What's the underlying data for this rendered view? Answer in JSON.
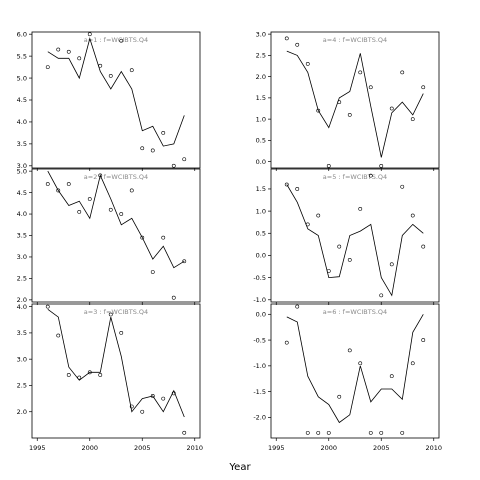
{
  "figure": {
    "xlabel": "Year"
  },
  "chart_data": [
    {
      "type": "line",
      "title": "a=1 : f=WCIBTS.Q4",
      "xlim": [
        1994.5,
        2010.5
      ],
      "ylim": [
        2.95,
        6.05
      ],
      "x_ticks": [
        1995,
        2000,
        2005,
        2010
      ],
      "y_ticks": [
        3.0,
        3.5,
        4.0,
        4.5,
        5.0,
        5.5,
        6.0
      ],
      "x_tick_labels": [],
      "y_tick_labels": [
        "3.0",
        "3.5",
        "4.0",
        "4.5",
        "5.0",
        "5.5",
        "6.0"
      ],
      "series": [
        {
          "style": "line",
          "x": [
            1996,
            1997,
            1998,
            1999,
            2000,
            2001,
            2002,
            2003,
            2004,
            2005,
            2006,
            2007,
            2008,
            2009
          ],
          "y": [
            5.6,
            5.45,
            5.45,
            5.0,
            5.9,
            5.15,
            4.75,
            5.15,
            4.75,
            3.8,
            3.9,
            3.45,
            3.5,
            4.15
          ]
        },
        {
          "style": "points",
          "x": [
            1996,
            1997,
            1998,
            1999,
            2000,
            2001,
            2002,
            2003,
            2004,
            2005,
            2006,
            2007,
            2008,
            2009
          ],
          "y": [
            5.25,
            5.65,
            5.6,
            5.45,
            6.0,
            5.28,
            5.05,
            5.85,
            5.18,
            3.4,
            3.35,
            3.75,
            3.0,
            3.15
          ]
        }
      ]
    },
    {
      "type": "line",
      "title": "a=4 : f=WCIBTS.Q4",
      "xlim": [
        1994.5,
        2010.5
      ],
      "ylim": [
        -0.15,
        3.05
      ],
      "x_ticks": [
        1995,
        2000,
        2005,
        2010
      ],
      "y_ticks": [
        0.0,
        0.5,
        1.0,
        1.5,
        2.0,
        2.5,
        3.0
      ],
      "x_tick_labels": [],
      "y_tick_labels": [
        "0.0",
        "0.5",
        "1.0",
        "1.5",
        "2.0",
        "2.5",
        "3.0"
      ],
      "series": [
        {
          "style": "line",
          "x": [
            1996,
            1997,
            1998,
            1999,
            2000,
            2001,
            2002,
            2003,
            2004,
            2005,
            2006,
            2007,
            2008,
            2009
          ],
          "y": [
            2.6,
            2.5,
            2.1,
            1.2,
            0.8,
            1.5,
            1.65,
            2.55,
            1.3,
            0.1,
            1.15,
            1.4,
            1.1,
            1.6
          ]
        },
        {
          "style": "points",
          "x": [
            1996,
            1997,
            1998,
            1999,
            2000,
            2001,
            2002,
            2003,
            2004,
            2005,
            2006,
            2007,
            2008,
            2009
          ],
          "y": [
            2.9,
            2.75,
            2.3,
            1.2,
            -0.1,
            1.4,
            1.1,
            2.1,
            1.75,
            -0.1,
            1.25,
            2.1,
            1.0,
            1.75
          ]
        }
      ]
    },
    {
      "type": "line",
      "title": "a=2 : f=WCIBTS.Q4",
      "xlim": [
        1994.5,
        2010.5
      ],
      "ylim": [
        1.95,
        5.05
      ],
      "x_ticks": [
        1995,
        2000,
        2005,
        2010
      ],
      "y_ticks": [
        2.0,
        2.5,
        3.0,
        3.5,
        4.0,
        4.5,
        5.0
      ],
      "x_tick_labels": [],
      "y_tick_labels": [
        "2.0",
        "2.5",
        "3.0",
        "3.5",
        "4.0",
        "4.5",
        "5.0"
      ],
      "series": [
        {
          "style": "line",
          "x": [
            1996,
            1997,
            1998,
            1999,
            2000,
            2001,
            2002,
            2003,
            2004,
            2005,
            2006,
            2007,
            2008,
            2009
          ],
          "y": [
            5.0,
            4.55,
            4.2,
            4.3,
            3.9,
            4.9,
            4.35,
            3.75,
            3.9,
            3.45,
            2.95,
            3.25,
            2.75,
            2.9
          ]
        },
        {
          "style": "points",
          "x": [
            1996,
            1997,
            1998,
            1999,
            2000,
            2001,
            2002,
            2003,
            2004,
            2005,
            2006,
            2007,
            2008,
            2009
          ],
          "y": [
            4.7,
            4.55,
            4.7,
            4.05,
            4.35,
            4.9,
            4.1,
            4.0,
            4.55,
            3.45,
            2.65,
            3.45,
            2.05,
            2.9
          ]
        }
      ]
    },
    {
      "type": "line",
      "title": "a=5 : f=WCIBTS.Q4",
      "xlim": [
        1994.5,
        2010.5
      ],
      "ylim": [
        -1.05,
        1.95
      ],
      "x_ticks": [
        1995,
        2000,
        2005,
        2010
      ],
      "y_ticks": [
        -1.0,
        -0.5,
        0.0,
        0.5,
        1.0,
        1.5
      ],
      "x_tick_labels": [],
      "y_tick_labels": [
        "-1.0",
        "-0.5",
        "0.0",
        "0.5",
        "1.0",
        "1.5"
      ],
      "series": [
        {
          "style": "line",
          "x": [
            1996,
            1997,
            1998,
            1999,
            2000,
            2001,
            2002,
            2003,
            2004,
            2005,
            2006,
            2007,
            2008,
            2009
          ],
          "y": [
            1.6,
            1.2,
            0.6,
            0.45,
            -0.5,
            -0.48,
            0.45,
            0.55,
            0.7,
            -0.5,
            -0.9,
            0.45,
            0.7,
            0.5
          ]
        },
        {
          "style": "points",
          "x": [
            1996,
            1997,
            1998,
            1999,
            2000,
            2001,
            2002,
            2003,
            2004,
            2005,
            2006,
            2007,
            2008,
            2009
          ],
          "y": [
            1.6,
            1.5,
            0.7,
            0.9,
            -0.35,
            0.2,
            -0.1,
            1.05,
            1.8,
            -0.9,
            -0.2,
            1.55,
            0.9,
            0.2
          ]
        }
      ]
    },
    {
      "type": "line",
      "title": "a=3 : f=WCIBTS.Q4",
      "xlim": [
        1994.5,
        2010.5
      ],
      "ylim": [
        1.5,
        4.05
      ],
      "x_ticks": [
        1995,
        2000,
        2005,
        2010
      ],
      "y_ticks": [
        2.0,
        2.5,
        3.0,
        3.5,
        4.0
      ],
      "x_tick_labels": [
        "1995",
        "2000",
        "2005",
        "2010"
      ],
      "y_tick_labels": [
        "2.0",
        "2.5",
        "3.0",
        "3.5",
        "4.0"
      ],
      "series": [
        {
          "style": "line",
          "x": [
            1996,
            1997,
            1998,
            1999,
            2000,
            2001,
            2002,
            2003,
            2004,
            2005,
            2006,
            2007,
            2008,
            2009
          ],
          "y": [
            3.95,
            3.8,
            2.85,
            2.6,
            2.75,
            2.75,
            3.8,
            3.05,
            2.0,
            2.25,
            2.3,
            2.0,
            2.4,
            1.9
          ]
        },
        {
          "style": "points",
          "x": [
            1996,
            1997,
            1998,
            1999,
            2000,
            2001,
            2002,
            2003,
            2004,
            2005,
            2006,
            2007,
            2008,
            2009
          ],
          "y": [
            4.0,
            3.45,
            2.7,
            2.65,
            2.75,
            2.7,
            3.85,
            3.5,
            2.1,
            2.0,
            2.3,
            2.25,
            2.35,
            1.6
          ]
        }
      ]
    },
    {
      "type": "line",
      "title": "a=6 : f=WCIBTS.Q4",
      "xlim": [
        1994.5,
        2010.5
      ],
      "ylim": [
        -2.4,
        0.2
      ],
      "x_ticks": [
        1995,
        2000,
        2005,
        2010
      ],
      "y_ticks": [
        -2.0,
        -1.5,
        -1.0,
        -0.5,
        0.0
      ],
      "x_tick_labels": [
        "1995",
        "2000",
        "2005",
        "2010"
      ],
      "y_tick_labels": [
        "-2.0",
        "-1.5",
        "-1.0",
        "-0.5",
        "0.0"
      ],
      "series": [
        {
          "style": "line",
          "x": [
            1996,
            1997,
            1998,
            1999,
            2000,
            2001,
            2002,
            2003,
            2004,
            2005,
            2006,
            2007,
            2008,
            2009
          ],
          "y": [
            -0.05,
            -0.15,
            -1.2,
            -1.6,
            -1.75,
            -2.1,
            -1.95,
            -1.0,
            -1.7,
            -1.45,
            -1.45,
            -1.65,
            -0.35,
            0.0
          ]
        },
        {
          "style": "points",
          "x": [
            1996,
            1997,
            1998,
            1999,
            2000,
            2001,
            2002,
            2003,
            2004,
            2005,
            2006,
            2007,
            2008,
            2009
          ],
          "y": [
            -0.55,
            0.15,
            -2.3,
            -2.3,
            -2.3,
            -1.6,
            -0.7,
            -0.95,
            -2.3,
            -2.3,
            -1.2,
            -2.3,
            -0.95,
            -0.5
          ]
        }
      ]
    }
  ]
}
